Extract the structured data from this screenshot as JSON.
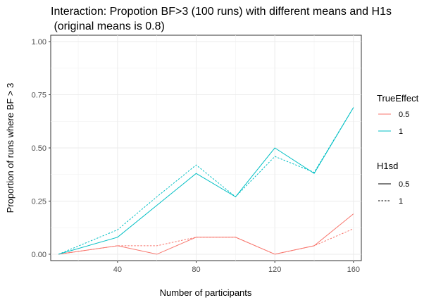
{
  "chart_data": {
    "type": "line",
    "title_line1": "Interaction: Propotion BF>3 (100 runs) with different means and H1s",
    "title_line2": " (original means is 0.8)",
    "xlabel": "Number of participants",
    "ylabel": "Proportion of runs where BF > 3",
    "x": [
      10,
      40,
      60,
      80,
      100,
      120,
      140,
      160
    ],
    "xlim": [
      6,
      164
    ],
    "ylim": [
      -0.03,
      1.03
    ],
    "x_ticks": [
      40,
      80,
      120,
      160
    ],
    "x_tick_labels": [
      "40",
      "80",
      "120",
      "160"
    ],
    "y_ticks": [
      0,
      0.25,
      0.5,
      0.75,
      1.0
    ],
    "y_tick_labels": [
      "0.00",
      "0.25",
      "0.50",
      "0.75",
      "1.00"
    ],
    "grid": true,
    "legend_position": "right",
    "legend": {
      "color_title": "TrueEffect",
      "color_items": [
        {
          "label": "0.5",
          "color": "#F8766D"
        },
        {
          "label": "1",
          "color": "#00BFC4"
        }
      ],
      "linetype_title": "H1sd",
      "linetype_items": [
        {
          "label": "0.5",
          "dash": "solid"
        },
        {
          "label": "1",
          "dash": "dotted"
        }
      ]
    },
    "series": [
      {
        "true_effect": "0.5",
        "h1sd": "0.5",
        "color": "#F8766D",
        "dash": "solid",
        "values": [
          0.0,
          0.04,
          0.0,
          0.08,
          0.08,
          0.0,
          0.04,
          0.19
        ]
      },
      {
        "true_effect": "0.5",
        "h1sd": "1",
        "color": "#F8766D",
        "dash": "dotted",
        "values": [
          0.0,
          0.04,
          0.04,
          0.08,
          0.08,
          0.0,
          0.04,
          0.12
        ]
      },
      {
        "true_effect": "1",
        "h1sd": "0.5",
        "color": "#00BFC4",
        "dash": "solid",
        "values": [
          0.0,
          0.08,
          0.23,
          0.38,
          0.27,
          0.5,
          0.38,
          0.69
        ]
      },
      {
        "true_effect": "1",
        "h1sd": "1",
        "color": "#00BFC4",
        "dash": "dotted",
        "values": [
          0.0,
          0.115,
          0.27,
          0.42,
          0.27,
          0.46,
          0.385,
          0.69
        ]
      }
    ]
  }
}
